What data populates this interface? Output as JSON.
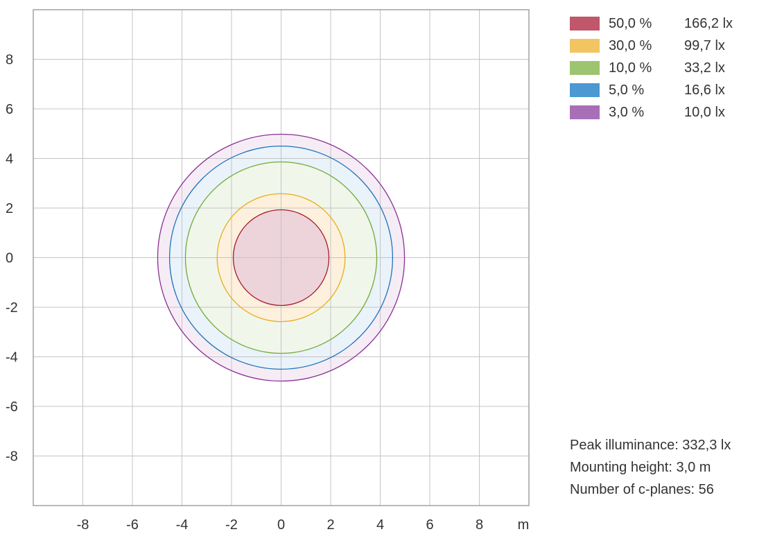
{
  "chart_data": {
    "type": "contour",
    "x_ticks": [
      -8,
      -6,
      -4,
      -2,
      0,
      2,
      4,
      6,
      8
    ],
    "y_ticks": [
      8,
      6,
      4,
      2,
      0,
      -2,
      -4,
      -6,
      -8
    ],
    "x_unit": "m",
    "xlim": [
      -10,
      10
    ],
    "ylim": [
      -10,
      10
    ],
    "grid": true,
    "legend_position": "top-right",
    "isolines": [
      {
        "percent": "50,0 %",
        "lux": "166,2 lx",
        "radius": 1.93,
        "color": "#c0576a",
        "stroke": "#a8192e",
        "fill": "#edd4da"
      },
      {
        "percent": "30,0 %",
        "lux": "99,7 lx",
        "radius": 2.58,
        "color": "#f2c462",
        "stroke": "#e8ac1c",
        "fill": "#fdf1dd"
      },
      {
        "percent": "10,0 %",
        "lux": "33,2 lx",
        "radius": 3.86,
        "color": "#9dc46e",
        "stroke": "#6fab36",
        "fill": "#f1f6ea"
      },
      {
        "percent": "5,0 %",
        "lux": "16,6 lx",
        "radius": 4.5,
        "color": "#4b98d3",
        "stroke": "#1e74b8",
        "fill": "#eaf2fa"
      },
      {
        "percent": "3,0 %",
        "lux": "10,0 lx",
        "radius": 4.98,
        "color": "#a86fb6",
        "stroke": "#8a3093",
        "fill": "#f6ecf6"
      }
    ]
  },
  "info": {
    "peak": "Peak illuminance: 332,3 lx",
    "height": "Mounting height: 3,0 m",
    "cplanes": "Number of c-planes: 56"
  }
}
